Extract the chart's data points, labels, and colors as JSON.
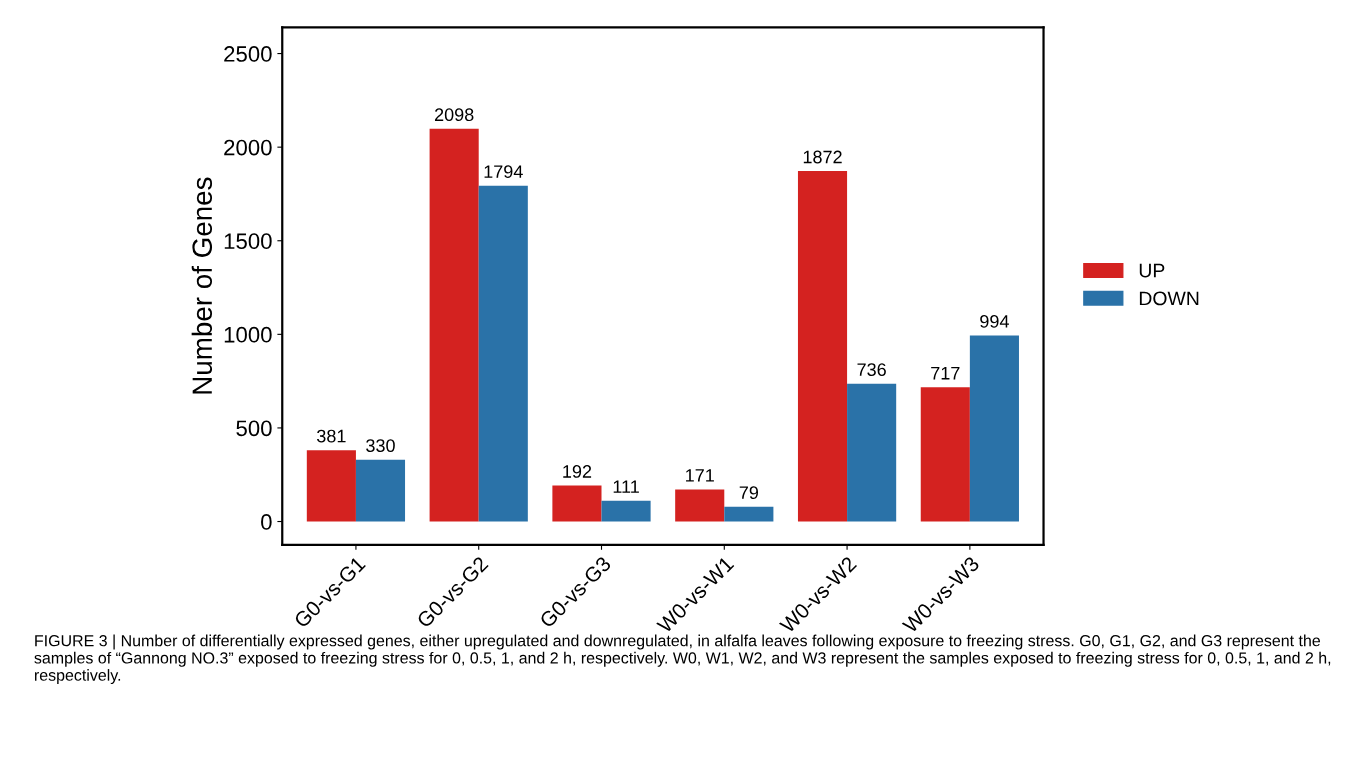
{
  "chart_data": {
    "type": "bar",
    "ylabel": "Number of Genes",
    "categories": [
      "G0-vs-G1",
      "G0-vs-G2",
      "G0-vs-G3",
      "W0-vs-W1",
      "W0-vs-W2",
      "W0-vs-W3"
    ],
    "series": [
      {
        "name": "UP",
        "color": "#d42220",
        "values": [
          381,
          2098,
          192,
          171,
          1872,
          717
        ]
      },
      {
        "name": "DOWN",
        "color": "#2a72a8",
        "values": [
          330,
          1794,
          111,
          79,
          736,
          994
        ]
      }
    ],
    "ylim": [
      -125,
      2640
    ],
    "yticks": [
      0,
      500,
      1000,
      1500,
      2000,
      2500
    ],
    "data_labels": true,
    "grid": false,
    "legend": "right",
    "annotations": [
      "FIGURE 3 | Number of differentially expressed genes, either upregulated and downregulated, in alfalfa leaves following exposure to freezing stress. G0, G1, G2, and G3 represent the samples of “Gannong NO.3” exposed to freezing stress for 0, 0.5, 1, and 2 h, respectively. W0, W1, W2, and W3 represent the samples exposed to freezing stress for 0, 0.5, 1, and 2 h, respectively."
    ]
  }
}
